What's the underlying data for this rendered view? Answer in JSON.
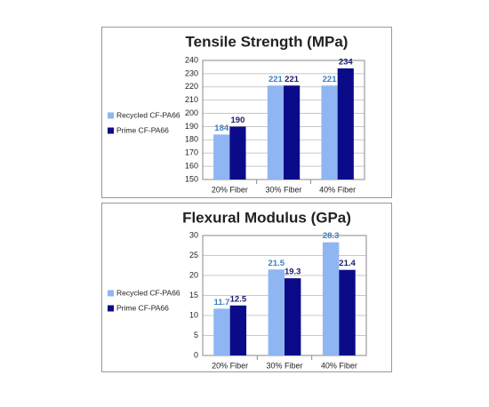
{
  "chart_data": [
    {
      "type": "bar",
      "title": "Tensile Strength (MPa)",
      "categories": [
        "20% Fiber",
        "30% Fiber",
        "40% Fiber"
      ],
      "series": [
        {
          "name": "Recycled CF-PA66",
          "color": "#8fb6f2",
          "values": [
            184,
            221,
            221
          ]
        },
        {
          "name": "Prime CF-PA66",
          "color": "#0b0b8a",
          "values": [
            190,
            221,
            234
          ]
        }
      ],
      "ylim": [
        150,
        240
      ],
      "yticks": [
        150,
        160,
        170,
        180,
        190,
        200,
        210,
        220,
        230,
        240
      ],
      "grid": true,
      "legend": "left"
    },
    {
      "type": "bar",
      "title": "Flexural Modulus (GPa)",
      "categories": [
        "20% Fiber",
        "30% Fiber",
        "40% Fiber"
      ],
      "series": [
        {
          "name": "Recycled CF-PA66",
          "color": "#8fb6f2",
          "values": [
            11.7,
            21.5,
            28.3
          ]
        },
        {
          "name": "Prime CF-PA66",
          "color": "#0b0b8a",
          "values": [
            12.5,
            19.3,
            21.4
          ]
        }
      ],
      "ylim": [
        0,
        30
      ],
      "yticks": [
        0,
        5,
        10,
        15,
        20,
        25,
        30
      ],
      "grid": true,
      "legend": "left"
    }
  ]
}
